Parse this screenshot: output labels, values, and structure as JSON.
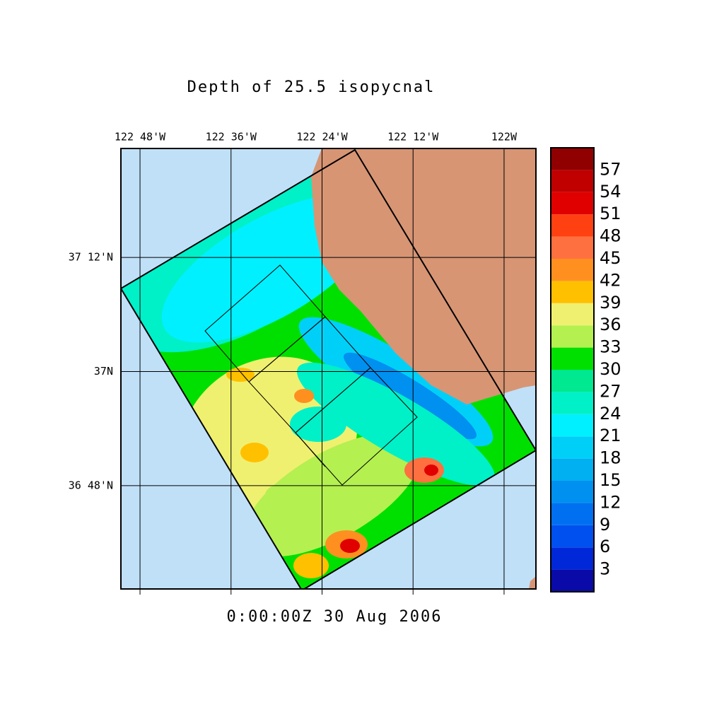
{
  "title": "Depth of 25.5 isopycnal",
  "timestamp": "0:00:00Z  30 Aug 2006",
  "map": {
    "lonlim": [
      -122.842,
      -121.93
    ],
    "latlim": [
      36.619,
      37.391
    ],
    "lon_ticks": [
      {
        "value": -122.8,
        "label": "122 48'W"
      },
      {
        "value": -122.6,
        "label": "122 36'W"
      },
      {
        "value": -122.4,
        "label": "122 24'W"
      },
      {
        "value": -122.2,
        "label": "122 12'W"
      },
      {
        "value": -122.0,
        "label": "122W"
      }
    ],
    "lat_ticks": [
      {
        "value": 37.2,
        "label": "37 12'N"
      },
      {
        "value": 37.0,
        "label": "37N"
      },
      {
        "value": 36.8,
        "label": "36 48'N"
      }
    ]
  },
  "colorbar": {
    "levels": [
      0,
      3,
      6,
      9,
      12,
      15,
      18,
      21,
      24,
      27,
      30,
      33,
      36,
      39,
      42,
      45,
      48,
      51,
      54,
      57,
      60
    ],
    "colors": [
      "#0a0aa8",
      "#0028d8",
      "#0050f0",
      "#0070f0",
      "#0090f0",
      "#00b0f0",
      "#00d0f8",
      "#00f0ff",
      "#00f0c8",
      "#00e890",
      "#00e000",
      "#b4f050",
      "#f0f070",
      "#ffc000",
      "#ff9020",
      "#ff7040",
      "#ff4010",
      "#e00000",
      "#c00000",
      "#900000"
    ]
  }
}
